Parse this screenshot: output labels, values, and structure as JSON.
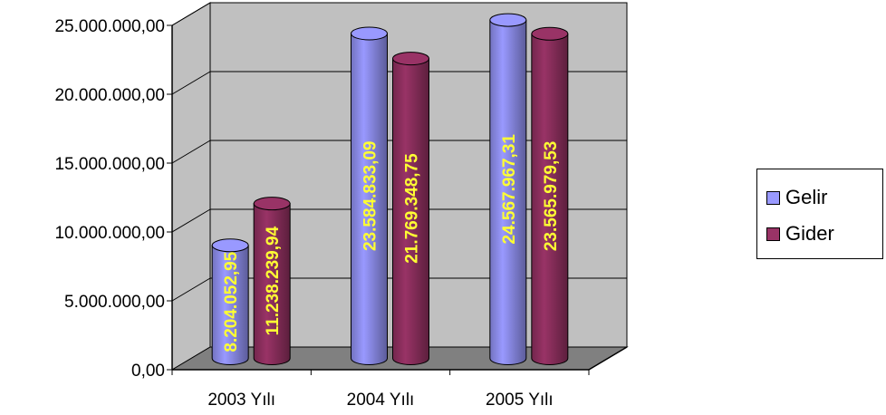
{
  "chart_data": {
    "type": "bar",
    "categories": [
      "2003 Yılı",
      "2004 Yılı",
      "2005 Yılı"
    ],
    "series": [
      {
        "name": "Gelir",
        "values": [
          8204052.95,
          23584833.09,
          24567967.31
        ],
        "labels": [
          "8.204.052,95",
          "23.584.833,09",
          "24.567.967,31"
        ],
        "color": "#9999ff"
      },
      {
        "name": "Gider",
        "values": [
          11238239.94,
          21769348.75,
          23565979.53
        ],
        "labels": [
          "11.238.239,94",
          "21.769.348,75",
          "23.565.979,53"
        ],
        "color": "#993366"
      }
    ],
    "yticks": [
      "0,00",
      "5.000.000,00",
      "10.000.000,00",
      "15.000.000,00",
      "20.000.000,00",
      "25.000.000,00"
    ],
    "ylim": [
      0,
      25000000
    ],
    "grid": true,
    "legend": "right",
    "style": "3d-cylinder",
    "wall_color": "#c0c0c0",
    "floor_color": "#808080",
    "data_label_color": "#ffff33"
  }
}
